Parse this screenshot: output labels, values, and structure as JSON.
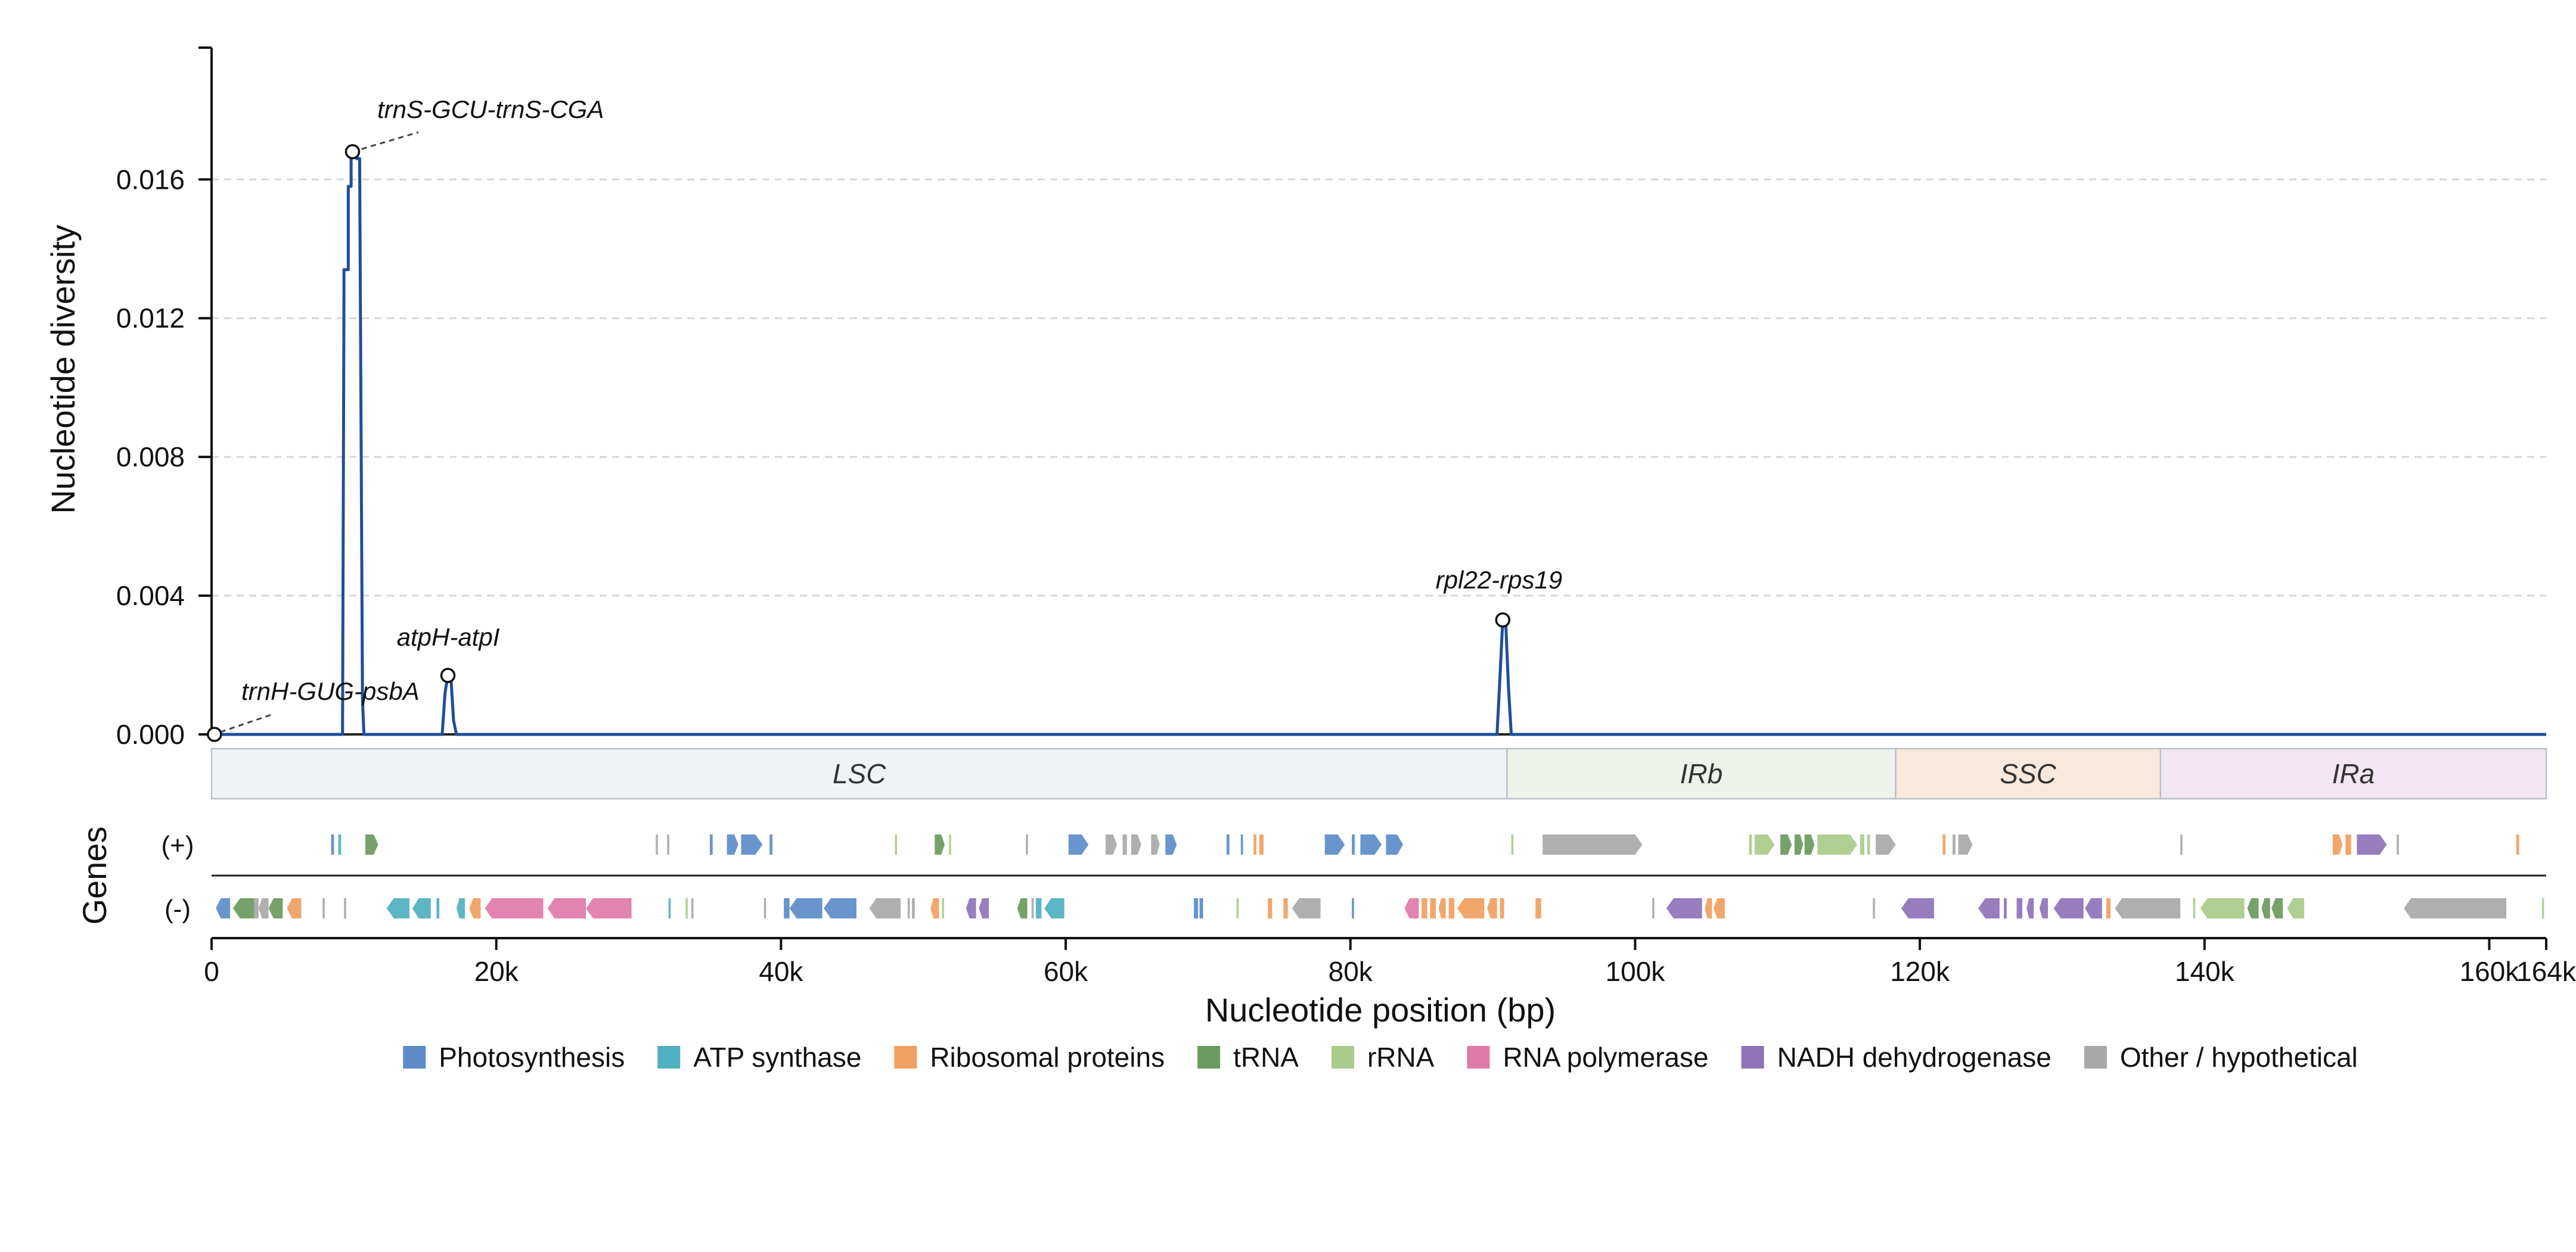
{
  "chart_data": {
    "type": "line",
    "xlabel": "Nucleotide position (bp)",
    "ylabel": "Nucleotide diversity",
    "genes_label": "Genes",
    "xlim": [
      0,
      164000
    ],
    "ylim": [
      0,
      0.0198
    ],
    "x_ticks": [
      0,
      20000,
      40000,
      60000,
      80000,
      100000,
      120000,
      140000,
      160000,
      164000
    ],
    "x_tick_labels": [
      "0",
      "20k",
      "40k",
      "60k",
      "80k",
      "100k",
      "120k",
      "140k",
      "160k",
      "164k"
    ],
    "y_ticks": [
      0,
      0.004,
      0.008,
      0.012,
      0.016
    ],
    "y_tick_labels": [
      "0.000",
      "0.004",
      "0.008",
      "0.012",
      "0.016"
    ],
    "grid": true,
    "series": [
      {
        "color": "#1f4e99",
        "x": [
          0,
          9200,
          9300,
          9300,
          9600,
          9600,
          9800,
          9800,
          10000,
          10200,
          10400,
          10600,
          10700,
          16200,
          16400,
          16600,
          16800,
          17000,
          17200,
          90300,
          90500,
          90700,
          90900,
          91100,
          91300,
          164000
        ],
        "y": [
          0,
          0,
          0.0126,
          0.0134,
          0.0134,
          0.0158,
          0.0158,
          0.0168,
          0.0168,
          0.0166,
          0.0166,
          0.001,
          0,
          0,
          0.0012,
          0.0017,
          0.0017,
          0.0004,
          0,
          0,
          0.0016,
          0.0033,
          0.0033,
          0.0014,
          0,
          0
        ]
      }
    ],
    "annotations": [
      {
        "label": "trnS-GCU-trnS-CGA",
        "x": 9900,
        "y": 0.0168
      },
      {
        "label": "atpH-atpI",
        "x": 16600,
        "y": 0.0017
      },
      {
        "label": "rpl22-rps19",
        "x": 90700,
        "y": 0.0033
      },
      {
        "label": "trnH-GUG-psbA",
        "x": 200,
        "y": 0.0
      }
    ],
    "regions": [
      {
        "name": "LSC",
        "start": 0,
        "end": 91000,
        "color": "#eff3f6"
      },
      {
        "name": "IRb",
        "start": 91000,
        "end": 118300,
        "color": "#edf3ea"
      },
      {
        "name": "SSC",
        "start": 118300,
        "end": 136900,
        "color": "#f9e9da"
      },
      {
        "name": "IRa",
        "start": 136900,
        "end": 164000,
        "color": "#f1e6f1"
      }
    ],
    "strands": [
      {
        "label": "(+)"
      },
      {
        "label": "(-)"
      }
    ],
    "legend": {
      "placement": "bottom",
      "entries": [
        {
          "name": "Photosynthesis",
          "color": "#5b8cc8"
        },
        {
          "name": "ATP synthase",
          "color": "#4fb0c0"
        },
        {
          "name": "Ribosomal proteins",
          "color": "#f0a060"
        },
        {
          "name": "tRNA",
          "color": "#6a9a5c"
        },
        {
          "name": "rRNA",
          "color": "#a9cc8a"
        },
        {
          "name": "RNA polymerase",
          "color": "#e07aa8"
        },
        {
          "name": "NADH dehydrogenase",
          "color": "#8e73b8"
        },
        {
          "name": "Other / hypothetical",
          "color": "#a8a8a8"
        }
      ]
    },
    "genes": [
      {
        "strand": "+",
        "start": 8400,
        "end": 8600,
        "category": "Photosynthesis"
      },
      {
        "strand": "+",
        "start": 8900,
        "end": 9100,
        "category": "ATP synthase"
      },
      {
        "strand": "+",
        "start": 10800,
        "end": 11700,
        "category": "tRNA"
      },
      {
        "strand": "+",
        "start": 31200,
        "end": 31350,
        "category": "Other / hypothetical"
      },
      {
        "strand": "+",
        "start": 32000,
        "end": 32150,
        "category": "Other / hypothetical"
      },
      {
        "strand": "+",
        "start": 35000,
        "end": 35200,
        "category": "Photosynthesis"
      },
      {
        "strand": "+",
        "start": 36200,
        "end": 37000,
        "category": "Photosynthesis"
      },
      {
        "strand": "+",
        "start": 37200,
        "end": 38700,
        "category": "Photosynthesis"
      },
      {
        "strand": "+",
        "start": 39200,
        "end": 39400,
        "category": "Photosynthesis"
      },
      {
        "strand": "+",
        "start": 48000,
        "end": 48150,
        "category": "rRNA"
      },
      {
        "strand": "+",
        "start": 50800,
        "end": 51500,
        "category": "tRNA"
      },
      {
        "strand": "+",
        "start": 51800,
        "end": 51950,
        "category": "rRNA"
      },
      {
        "strand": "+",
        "start": 57200,
        "end": 57350,
        "category": "Other / hypothetical"
      },
      {
        "strand": "+",
        "start": 60200,
        "end": 61600,
        "category": "Photosynthesis"
      },
      {
        "strand": "+",
        "start": 62800,
        "end": 63600,
        "category": "Other / hypothetical"
      },
      {
        "strand": "+",
        "start": 64000,
        "end": 64300,
        "category": "Other / hypothetical"
      },
      {
        "strand": "+",
        "start": 64600,
        "end": 65300,
        "category": "Other / hypothetical"
      },
      {
        "strand": "+",
        "start": 66000,
        "end": 66600,
        "category": "Other / hypothetical"
      },
      {
        "strand": "+",
        "start": 67000,
        "end": 67800,
        "category": "Photosynthesis"
      },
      {
        "strand": "+",
        "start": 71300,
        "end": 71500,
        "category": "Photosynthesis"
      },
      {
        "strand": "+",
        "start": 72300,
        "end": 72450,
        "category": "Photosynthesis"
      },
      {
        "strand": "+",
        "start": 73200,
        "end": 73400,
        "category": "Ribosomal proteins"
      },
      {
        "strand": "+",
        "start": 73600,
        "end": 73900,
        "category": "Ribosomal proteins"
      },
      {
        "strand": "+",
        "start": 78200,
        "end": 79600,
        "category": "Photosynthesis"
      },
      {
        "strand": "+",
        "start": 80100,
        "end": 80300,
        "category": "Photosynthesis"
      },
      {
        "strand": "+",
        "start": 80700,
        "end": 82200,
        "category": "Photosynthesis"
      },
      {
        "strand": "+",
        "start": 82500,
        "end": 83700,
        "category": "Photosynthesis"
      },
      {
        "strand": "+",
        "start": 91300,
        "end": 91450,
        "category": "rRNA"
      },
      {
        "strand": "+",
        "start": 93500,
        "end": 100500,
        "category": "Other / hypothetical"
      },
      {
        "strand": "+",
        "start": 108000,
        "end": 108200,
        "category": "rRNA"
      },
      {
        "strand": "+",
        "start": 108400,
        "end": 109800,
        "category": "rRNA"
      },
      {
        "strand": "+",
        "start": 110200,
        "end": 111000,
        "category": "tRNA"
      },
      {
        "strand": "+",
        "start": 111200,
        "end": 111800,
        "category": "tRNA"
      },
      {
        "strand": "+",
        "start": 111900,
        "end": 112600,
        "category": "tRNA"
      },
      {
        "strand": "+",
        "start": 112800,
        "end": 115600,
        "category": "rRNA"
      },
      {
        "strand": "+",
        "start": 115800,
        "end": 116100,
        "category": "rRNA"
      },
      {
        "strand": "+",
        "start": 116300,
        "end": 116500,
        "category": "rRNA"
      },
      {
        "strand": "+",
        "start": 116900,
        "end": 118300,
        "category": "Other / hypothetical"
      },
      {
        "strand": "+",
        "start": 121600,
        "end": 121800,
        "category": "Ribosomal proteins"
      },
      {
        "strand": "+",
        "start": 122300,
        "end": 122500,
        "category": "Other / hypothetical"
      },
      {
        "strand": "+",
        "start": 122700,
        "end": 123700,
        "category": "Other / hypothetical"
      },
      {
        "strand": "+",
        "start": 138300,
        "end": 138450,
        "category": "Other / hypothetical"
      },
      {
        "strand": "+",
        "start": 149000,
        "end": 149700,
        "category": "Ribosomal proteins"
      },
      {
        "strand": "+",
        "start": 149900,
        "end": 150300,
        "category": "Ribosomal proteins"
      },
      {
        "strand": "+",
        "start": 150700,
        "end": 152800,
        "category": "NADH dehydrogenase"
      },
      {
        "strand": "+",
        "start": 153500,
        "end": 153650,
        "category": "Other / hypothetical"
      },
      {
        "strand": "+",
        "start": 161900,
        "end": 162100,
        "category": "Ribosomal proteins"
      },
      {
        "strand": "-",
        "start": 300,
        "end": 1300,
        "category": "Photosynthesis"
      },
      {
        "strand": "-",
        "start": 1500,
        "end": 3000,
        "category": "tRNA"
      },
      {
        "strand": "-",
        "start": 3000,
        "end": 3300,
        "category": "Other / hypothetical"
      },
      {
        "strand": "-",
        "start": 3300,
        "end": 4000,
        "category": "Other / hypothetical"
      },
      {
        "strand": "-",
        "start": 4000,
        "end": 5000,
        "category": "tRNA"
      },
      {
        "strand": "-",
        "start": 5300,
        "end": 6300,
        "category": "Ribosomal proteins"
      },
      {
        "strand": "-",
        "start": 7800,
        "end": 7950,
        "category": "Other / hypothetical"
      },
      {
        "strand": "-",
        "start": 9300,
        "end": 9450,
        "category": "Other / hypothetical"
      },
      {
        "strand": "-",
        "start": 12300,
        "end": 13900,
        "category": "ATP synthase"
      },
      {
        "strand": "-",
        "start": 14100,
        "end": 15400,
        "category": "ATP synthase"
      },
      {
        "strand": "-",
        "start": 15800,
        "end": 16000,
        "category": "ATP synthase"
      },
      {
        "strand": "-",
        "start": 17200,
        "end": 17800,
        "category": "ATP synthase"
      },
      {
        "strand": "-",
        "start": 18100,
        "end": 18900,
        "category": "Ribosomal proteins"
      },
      {
        "strand": "-",
        "start": 19200,
        "end": 23300,
        "category": "RNA polymerase"
      },
      {
        "strand": "-",
        "start": 23600,
        "end": 26300,
        "category": "RNA polymerase"
      },
      {
        "strand": "-",
        "start": 26300,
        "end": 29500,
        "category": "RNA polymerase"
      },
      {
        "strand": "-",
        "start": 32100,
        "end": 32250,
        "category": "ATP synthase"
      },
      {
        "strand": "-",
        "start": 33300,
        "end": 33450,
        "category": "rRNA"
      },
      {
        "strand": "-",
        "start": 33700,
        "end": 33850,
        "category": "Other / hypothetical"
      },
      {
        "strand": "-",
        "start": 38800,
        "end": 38950,
        "category": "Other / hypothetical"
      },
      {
        "strand": "-",
        "start": 40200,
        "end": 40600,
        "category": "Photosynthesis"
      },
      {
        "strand": "-",
        "start": 40600,
        "end": 42900,
        "category": "Photosynthesis"
      },
      {
        "strand": "-",
        "start": 43000,
        "end": 45300,
        "category": "Photosynthesis"
      },
      {
        "strand": "-",
        "start": 46200,
        "end": 48400,
        "category": "Other / hypothetical"
      },
      {
        "strand": "-",
        "start": 48900,
        "end": 49050,
        "category": "Other / hypothetical"
      },
      {
        "strand": "-",
        "start": 49200,
        "end": 49400,
        "category": "Other / hypothetical"
      },
      {
        "strand": "-",
        "start": 50500,
        "end": 51100,
        "category": "Ribosomal proteins"
      },
      {
        "strand": "-",
        "start": 51300,
        "end": 51450,
        "category": "rRNA"
      },
      {
        "strand": "-",
        "start": 53000,
        "end": 53700,
        "category": "NADH dehydrogenase"
      },
      {
        "strand": "-",
        "start": 53900,
        "end": 54600,
        "category": "NADH dehydrogenase"
      },
      {
        "strand": "-",
        "start": 56600,
        "end": 57300,
        "category": "tRNA"
      },
      {
        "strand": "-",
        "start": 57600,
        "end": 57750,
        "category": "Other / hypothetical"
      },
      {
        "strand": "-",
        "start": 57900,
        "end": 58300,
        "category": "ATP synthase"
      },
      {
        "strand": "-",
        "start": 58500,
        "end": 59900,
        "category": "ATP synthase"
      },
      {
        "strand": "-",
        "start": 69000,
        "end": 69300,
        "category": "Photosynthesis"
      },
      {
        "strand": "-",
        "start": 69400,
        "end": 69650,
        "category": "Photosynthesis"
      },
      {
        "strand": "-",
        "start": 72000,
        "end": 72150,
        "category": "rRNA"
      },
      {
        "strand": "-",
        "start": 74200,
        "end": 74500,
        "category": "Ribosomal proteins"
      },
      {
        "strand": "-",
        "start": 75300,
        "end": 75600,
        "category": "Ribosomal proteins"
      },
      {
        "strand": "-",
        "start": 75900,
        "end": 77900,
        "category": "Other / hypothetical"
      },
      {
        "strand": "-",
        "start": 80100,
        "end": 80250,
        "category": "Photosynthesis"
      },
      {
        "strand": "-",
        "start": 83800,
        "end": 84800,
        "category": "RNA polymerase"
      },
      {
        "strand": "-",
        "start": 85000,
        "end": 85400,
        "category": "Ribosomal proteins"
      },
      {
        "strand": "-",
        "start": 85600,
        "end": 86000,
        "category": "Ribosomal proteins"
      },
      {
        "strand": "-",
        "start": 86200,
        "end": 86700,
        "category": "Ribosomal proteins"
      },
      {
        "strand": "-",
        "start": 86900,
        "end": 87300,
        "category": "Ribosomal proteins"
      },
      {
        "strand": "-",
        "start": 87500,
        "end": 89400,
        "category": "Ribosomal proteins"
      },
      {
        "strand": "-",
        "start": 89600,
        "end": 90300,
        "category": "Ribosomal proteins"
      },
      {
        "strand": "-",
        "start": 90500,
        "end": 90800,
        "category": "Ribosomal proteins"
      },
      {
        "strand": "-",
        "start": 93000,
        "end": 93400,
        "category": "Ribosomal proteins"
      },
      {
        "strand": "-",
        "start": 101200,
        "end": 101350,
        "category": "Other / hypothetical"
      },
      {
        "strand": "-",
        "start": 102200,
        "end": 104700,
        "category": "NADH dehydrogenase"
      },
      {
        "strand": "-",
        "start": 104900,
        "end": 105400,
        "category": "Ribosomal proteins"
      },
      {
        "strand": "-",
        "start": 105500,
        "end": 106300,
        "category": "Ribosomal proteins"
      },
      {
        "strand": "-",
        "start": 116700,
        "end": 116850,
        "category": "Other / hypothetical"
      },
      {
        "strand": "-",
        "start": 118700,
        "end": 121000,
        "category": "NADH dehydrogenase"
      },
      {
        "strand": "-",
        "start": 124100,
        "end": 125600,
        "category": "NADH dehydrogenase"
      },
      {
        "strand": "-",
        "start": 125900,
        "end": 126100,
        "category": "NADH dehydrogenase"
      },
      {
        "strand": "-",
        "start": 126800,
        "end": 127200,
        "category": "NADH dehydrogenase"
      },
      {
        "strand": "-",
        "start": 127500,
        "end": 128000,
        "category": "NADH dehydrogenase"
      },
      {
        "strand": "-",
        "start": 128400,
        "end": 129000,
        "category": "NADH dehydrogenase"
      },
      {
        "strand": "-",
        "start": 129400,
        "end": 131500,
        "category": "NADH dehydrogenase"
      },
      {
        "strand": "-",
        "start": 131600,
        "end": 132800,
        "category": "NADH dehydrogenase"
      },
      {
        "strand": "-",
        "start": 133100,
        "end": 133400,
        "category": "Ribosomal proteins"
      },
      {
        "strand": "-",
        "start": 133700,
        "end": 138300,
        "category": "Other / hypothetical"
      },
      {
        "strand": "-",
        "start": 139200,
        "end": 139350,
        "category": "rRNA"
      },
      {
        "strand": "-",
        "start": 139700,
        "end": 142800,
        "category": "rRNA"
      },
      {
        "strand": "-",
        "start": 143000,
        "end": 143800,
        "category": "tRNA"
      },
      {
        "strand": "-",
        "start": 144000,
        "end": 144600,
        "category": "tRNA"
      },
      {
        "strand": "-",
        "start": 144700,
        "end": 145500,
        "category": "tRNA"
      },
      {
        "strand": "-",
        "start": 145800,
        "end": 147000,
        "category": "rRNA"
      },
      {
        "strand": "-",
        "start": 154000,
        "end": 161200,
        "category": "Other / hypothetical"
      },
      {
        "strand": "-",
        "start": 163700,
        "end": 163850,
        "category": "rRNA"
      }
    ]
  }
}
